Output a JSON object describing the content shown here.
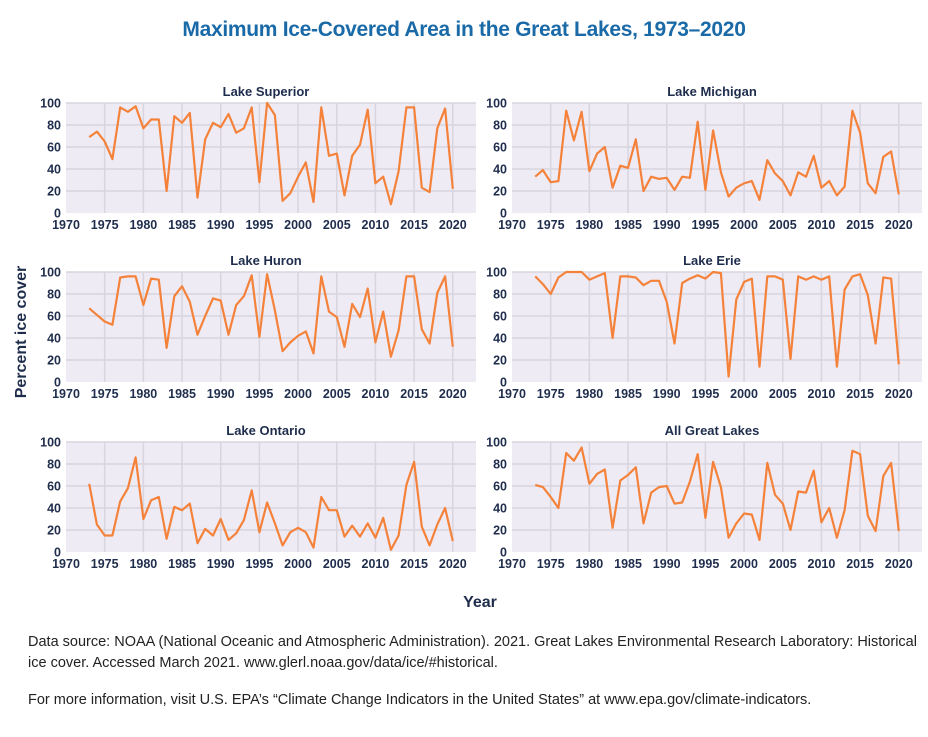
{
  "title": "Maximum Ice-Covered Area in the Great Lakes, 1973–2020",
  "ylabel": "Percent ice cover",
  "xlabel": "Year",
  "colors": {
    "line": "#f5823a",
    "plot_bg": "#eeebf5",
    "grid": "#d8d5de",
    "text": "#1f2d4d",
    "title": "#1a6aa8"
  },
  "notes": {
    "source": "Data source: NOAA (National Oceanic and Atmospheric Administration). 2021. Great Lakes Environmental Research Laboratory: Historical ice cover. Accessed March 2021. www.glerl.noaa.gov/data/ice/#historical.",
    "more_info": "For more information, visit U.S. EPA’s “Climate Change Indicators in the United States” at www.epa.gov/climate-indicators."
  },
  "chart_data": [
    {
      "type": "line",
      "title": "Lake Superior",
      "xlim": [
        1970,
        2023
      ],
      "ylim": [
        0,
        100
      ],
      "xticks": [
        1970,
        1975,
        1980,
        1985,
        1990,
        1995,
        2000,
        2005,
        2010,
        2015,
        2020
      ],
      "yticks": [
        0,
        20,
        40,
        60,
        80,
        100
      ],
      "grid": true,
      "x_start": 1973,
      "values": [
        69,
        74,
        65,
        49,
        96,
        92,
        97,
        77,
        85,
        85,
        20,
        88,
        82,
        91,
        14,
        67,
        82,
        78,
        90,
        73,
        77,
        96,
        28,
        100,
        89,
        11,
        18,
        33,
        46,
        10,
        96,
        52,
        54,
        16,
        52,
        62,
        94,
        27,
        33,
        8,
        38,
        96,
        96,
        23,
        19,
        77,
        95,
        22
      ]
    },
    {
      "type": "line",
      "title": "Lake Michigan",
      "xlim": [
        1970,
        2023
      ],
      "ylim": [
        0,
        100
      ],
      "xticks": [
        1970,
        1975,
        1980,
        1985,
        1990,
        1995,
        2000,
        2005,
        2010,
        2015,
        2020
      ],
      "yticks": [
        0,
        20,
        40,
        60,
        80,
        100
      ],
      "grid": true,
      "x_start": 1973,
      "values": [
        33,
        39,
        28,
        29,
        93,
        66,
        92,
        38,
        54,
        60,
        23,
        43,
        41,
        67,
        20,
        33,
        31,
        32,
        21,
        33,
        32,
        83,
        21,
        75,
        37,
        15,
        23,
        27,
        29,
        12,
        48,
        36,
        29,
        16,
        37,
        33,
        52,
        23,
        29,
        16,
        24,
        93,
        73,
        27,
        18,
        51,
        56,
        17
      ]
    },
    {
      "type": "line",
      "title": "Lake Huron",
      "xlim": [
        1970,
        2023
      ],
      "ylim": [
        0,
        100
      ],
      "xticks": [
        1970,
        1975,
        1980,
        1985,
        1990,
        1995,
        2000,
        2005,
        2010,
        2015,
        2020
      ],
      "yticks": [
        0,
        20,
        40,
        60,
        80,
        100
      ],
      "grid": true,
      "x_start": 1973,
      "values": [
        67,
        61,
        55,
        52,
        95,
        96,
        96,
        70,
        94,
        93,
        31,
        78,
        87,
        73,
        43,
        60,
        76,
        74,
        43,
        70,
        78,
        97,
        41,
        98,
        65,
        28,
        36,
        42,
        46,
        26,
        96,
        64,
        59,
        32,
        71,
        59,
        85,
        36,
        64,
        23,
        47,
        96,
        96,
        48,
        35,
        81,
        96,
        32
      ]
    },
    {
      "type": "line",
      "title": "Lake Erie",
      "xlim": [
        1970,
        2023
      ],
      "ylim": [
        0,
        100
      ],
      "xticks": [
        1970,
        1975,
        1980,
        1985,
        1990,
        1995,
        2000,
        2005,
        2010,
        2015,
        2020
      ],
      "yticks": [
        0,
        20,
        40,
        60,
        80,
        100
      ],
      "grid": true,
      "x_start": 1973,
      "values": [
        96,
        89,
        80,
        95,
        100,
        100,
        100,
        93,
        96,
        99,
        40,
        96,
        96,
        95,
        88,
        92,
        92,
        73,
        35,
        90,
        94,
        97,
        94,
        100,
        99,
        5,
        75,
        91,
        94,
        14,
        96,
        96,
        93,
        21,
        96,
        93,
        96,
        93,
        96,
        14,
        84,
        96,
        98,
        79,
        35,
        95,
        94,
        16
      ]
    },
    {
      "type": "line",
      "title": "Lake Ontario",
      "xlim": [
        1970,
        2023
      ],
      "ylim": [
        0,
        100
      ],
      "xticks": [
        1970,
        1975,
        1980,
        1985,
        1990,
        1995,
        2000,
        2005,
        2010,
        2015,
        2020
      ],
      "yticks": [
        0,
        20,
        40,
        60,
        80,
        100
      ],
      "grid": true,
      "x_start": 1973,
      "values": [
        62,
        25,
        15,
        15,
        46,
        58,
        86,
        30,
        47,
        50,
        12,
        41,
        38,
        44,
        8,
        21,
        15,
        30,
        11,
        17,
        29,
        56,
        18,
        45,
        26,
        6,
        18,
        22,
        18,
        4,
        50,
        38,
        38,
        14,
        24,
        14,
        26,
        13,
        31,
        2,
        15,
        61,
        82,
        23,
        6,
        25,
        40,
        10
      ]
    },
    {
      "type": "line",
      "title": "All Great Lakes",
      "xlim": [
        1970,
        2023
      ],
      "ylim": [
        0,
        100
      ],
      "xticks": [
        1970,
        1975,
        1980,
        1985,
        1990,
        1995,
        2000,
        2005,
        2010,
        2015,
        2020
      ],
      "yticks": [
        0,
        20,
        40,
        60,
        80,
        100
      ],
      "grid": true,
      "x_start": 1973,
      "values": [
        61,
        59,
        50,
        40,
        90,
        83,
        95,
        62,
        71,
        75,
        22,
        65,
        70,
        77,
        26,
        54,
        59,
        60,
        44,
        45,
        64,
        89,
        31,
        82,
        59,
        13,
        26,
        35,
        34,
        11,
        81,
        52,
        44,
        20,
        55,
        54,
        74,
        27,
        40,
        13,
        38,
        92,
        89,
        33,
        19,
        69,
        81,
        19
      ]
    }
  ]
}
